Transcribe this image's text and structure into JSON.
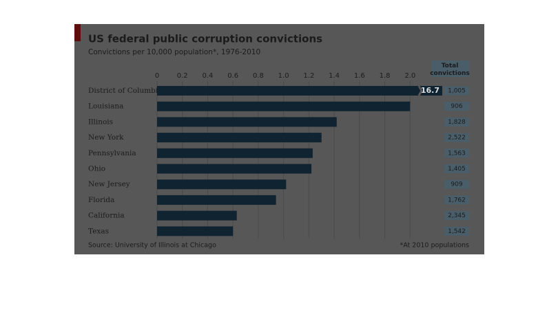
{
  "chart_data": {
    "type": "bar",
    "orientation": "horizontal",
    "title": "US federal public corruption convictions",
    "subtitle": "Convictions per 10,000 population*, 1976-2010",
    "categories": [
      "District of Columbia",
      "Louisiana",
      "Illinois",
      "New York",
      "Pennsylvania",
      "Ohio",
      "New Jersey",
      "Florida",
      "California",
      "Texas"
    ],
    "values": [
      16.7,
      2.0,
      1.42,
      1.3,
      1.23,
      1.22,
      1.02,
      0.94,
      0.63,
      0.6
    ],
    "value_labels": [
      "16.7",
      null,
      null,
      null,
      null,
      null,
      null,
      null,
      null,
      null
    ],
    "color": "#0f2330",
    "xlim": [
      0,
      2.2
    ],
    "xticks": [
      0,
      0.2,
      0.4,
      0.6,
      0.8,
      {
        "value": 1,
        "label": "1.0"
      },
      1.2,
      1.4,
      1.6,
      1.8,
      {
        "value": 2,
        "label": "2.0"
      }
    ],
    "grid": true,
    "totals_title": "Total convictions",
    "totals": [
      1005,
      906,
      1828,
      2522,
      1563,
      1405,
      909,
      1762,
      2345,
      1542
    ],
    "totals_labels": [
      "1,005",
      "906",
      "1,828",
      "2,522",
      "1,563",
      "1,405",
      "909",
      "1,762",
      "2,345",
      "1,542"
    ],
    "source": "Source: University of Illinois at Chicago",
    "footnote": "*At 2010 populations"
  }
}
